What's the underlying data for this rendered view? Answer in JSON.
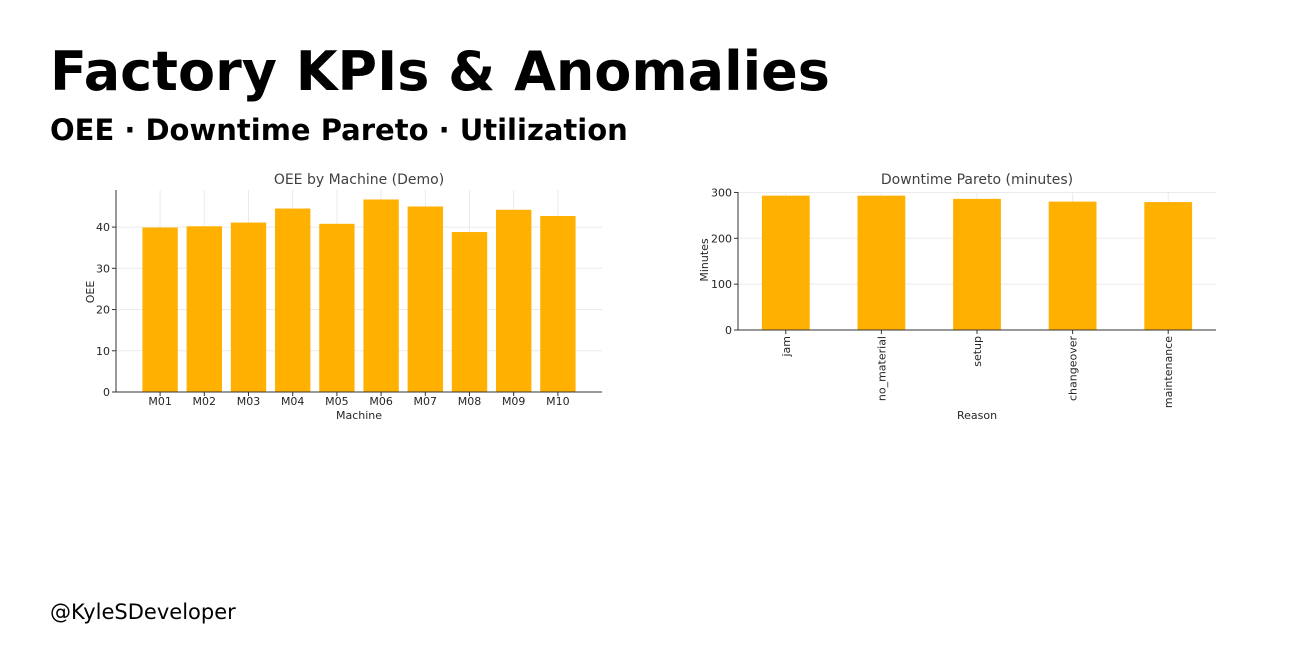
{
  "page": {
    "title": "Factory KPIs & Anomalies",
    "subtitle": "OEE · Downtime Pareto · Utilization",
    "footer": "@KyleSDeveloper"
  },
  "colors": {
    "bar": "#FFB000",
    "text": "#000000",
    "axis": "#333333"
  },
  "chart_data": [
    {
      "type": "bar",
      "title": "OEE by Machine (Demo)",
      "xlabel": "Machine",
      "ylabel": "OEE",
      "categories": [
        "M01",
        "M02",
        "M03",
        "M04",
        "M05",
        "M06",
        "M07",
        "M08",
        "M09",
        "M10"
      ],
      "values": [
        39.9,
        40.2,
        41.1,
        44.5,
        40.8,
        46.7,
        45.0,
        38.8,
        44.2,
        42.7
      ],
      "ylim": [
        0,
        49
      ],
      "yticks": [
        0,
        10,
        20,
        30,
        40
      ],
      "grid": true,
      "legend": "none"
    },
    {
      "type": "bar",
      "title": "Downtime Pareto (minutes)",
      "xlabel": "Reason",
      "ylabel": "Minutes",
      "categories": [
        "jam",
        "no_material",
        "setup",
        "changeover",
        "maintenance"
      ],
      "values": [
        293,
        293,
        286,
        280,
        279
      ],
      "ylim": [
        0,
        301
      ],
      "yticks": [
        0,
        100,
        200,
        300
      ],
      "grid": true,
      "legend": "none",
      "tick_label_rotation": 90
    }
  ]
}
